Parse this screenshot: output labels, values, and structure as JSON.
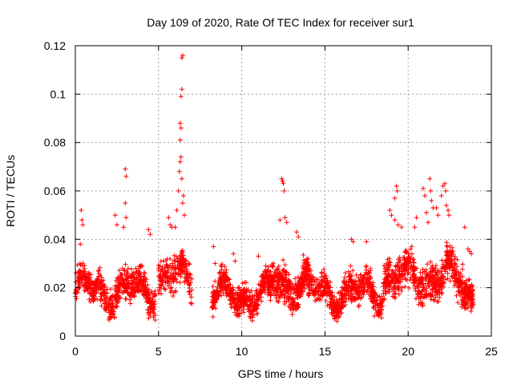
{
  "chart_data": {
    "type": "scatter",
    "title": "Day 109 of 2020, Rate Of TEC Index for receiver sur1",
    "xlabel": "GPS time / hours",
    "ylabel": "ROTI / TECUs",
    "xlim": [
      0,
      25
    ],
    "ylim": [
      0,
      0.12
    ],
    "x_ticks": [
      0,
      5,
      10,
      15,
      20,
      25
    ],
    "x_tick_labels": [
      "0",
      "5",
      "10",
      "15",
      "20",
      "25"
    ],
    "y_ticks": [
      0,
      0.02,
      0.04,
      0.06,
      0.08,
      0.1,
      0.12
    ],
    "y_tick_labels": [
      "0",
      "0.02",
      "0.04",
      "0.06",
      "0.08",
      "0.1",
      "0.12"
    ],
    "grid": true,
    "marker": "+",
    "marker_color": "#ff0000",
    "segments": [
      {
        "x0": 0.0,
        "x1": 4.8,
        "base": 0.019,
        "spread": 0.009,
        "n": 620
      },
      {
        "x0": 5.0,
        "x1": 7.0,
        "base": 0.024,
        "spread": 0.01,
        "n": 220
      },
      {
        "x0": 8.2,
        "x1": 11.8,
        "base": 0.017,
        "spread": 0.008,
        "n": 520
      },
      {
        "x0": 11.8,
        "x1": 14.0,
        "base": 0.022,
        "spread": 0.01,
        "n": 360
      },
      {
        "x0": 14.0,
        "x1": 18.5,
        "base": 0.018,
        "spread": 0.009,
        "n": 560
      },
      {
        "x0": 18.5,
        "x1": 23.3,
        "base": 0.024,
        "spread": 0.011,
        "n": 620
      },
      {
        "x0": 23.3,
        "x1": 23.9,
        "base": 0.018,
        "spread": 0.008,
        "n": 120
      }
    ],
    "points": [
      [
        0.35,
        0.052
      ],
      [
        0.4,
        0.048
      ],
      [
        0.45,
        0.046
      ],
      [
        0.3,
        0.038
      ],
      [
        2.4,
        0.05
      ],
      [
        2.5,
        0.046
      ],
      [
        2.9,
        0.045
      ],
      [
        3.0,
        0.069
      ],
      [
        3.05,
        0.066
      ],
      [
        3.0,
        0.055
      ],
      [
        3.05,
        0.049
      ],
      [
        5.6,
        0.049
      ],
      [
        5.7,
        0.046
      ],
      [
        5.8,
        0.045
      ],
      [
        6.0,
        0.045
      ],
      [
        6.1,
        0.052
      ],
      [
        6.2,
        0.06
      ],
      [
        6.25,
        0.068
      ],
      [
        6.3,
        0.072
      ],
      [
        6.35,
        0.074
      ],
      [
        6.3,
        0.081
      ],
      [
        6.35,
        0.086
      ],
      [
        6.3,
        0.088
      ],
      [
        6.4,
        0.102
      ],
      [
        6.35,
        0.099
      ],
      [
        6.4,
        0.115
      ],
      [
        6.45,
        0.116
      ],
      [
        6.4,
        0.065
      ],
      [
        6.45,
        0.055
      ],
      [
        6.5,
        0.058
      ],
      [
        6.55,
        0.05
      ],
      [
        8.3,
        0.037
      ],
      [
        8.4,
        0.03
      ],
      [
        12.4,
        0.065
      ],
      [
        12.45,
        0.064
      ],
      [
        12.5,
        0.063
      ],
      [
        12.55,
        0.06
      ],
      [
        12.3,
        0.048
      ],
      [
        12.6,
        0.049
      ],
      [
        12.7,
        0.047
      ],
      [
        13.3,
        0.043
      ],
      [
        13.4,
        0.041
      ],
      [
        16.6,
        0.04
      ],
      [
        16.7,
        0.039
      ],
      [
        17.5,
        0.039
      ],
      [
        18.9,
        0.052
      ],
      [
        19.0,
        0.05
      ],
      [
        19.2,
        0.057
      ],
      [
        19.3,
        0.062
      ],
      [
        19.35,
        0.06
      ],
      [
        19.2,
        0.048
      ],
      [
        19.4,
        0.046
      ],
      [
        19.6,
        0.045
      ],
      [
        20.4,
        0.045
      ],
      [
        20.5,
        0.049
      ],
      [
        20.9,
        0.061
      ],
      [
        21.0,
        0.058
      ],
      [
        21.1,
        0.051
      ],
      [
        21.2,
        0.047
      ],
      [
        21.3,
        0.065
      ],
      [
        21.35,
        0.06
      ],
      [
        21.4,
        0.056
      ],
      [
        21.5,
        0.053
      ],
      [
        21.7,
        0.053
      ],
      [
        21.8,
        0.05
      ],
      [
        22.0,
        0.058
      ],
      [
        22.1,
        0.062
      ],
      [
        22.2,
        0.063
      ],
      [
        22.25,
        0.06
      ],
      [
        22.3,
        0.054
      ],
      [
        22.4,
        0.052
      ],
      [
        22.45,
        0.05
      ],
      [
        23.4,
        0.045
      ],
      [
        23.6,
        0.036
      ],
      [
        23.7,
        0.035
      ],
      [
        23.8,
        0.034
      ],
      [
        11.0,
        0.033
      ],
      [
        9.5,
        0.034
      ],
      [
        9.6,
        0.031
      ],
      [
        4.4,
        0.044
      ],
      [
        4.5,
        0.042
      ]
    ]
  }
}
